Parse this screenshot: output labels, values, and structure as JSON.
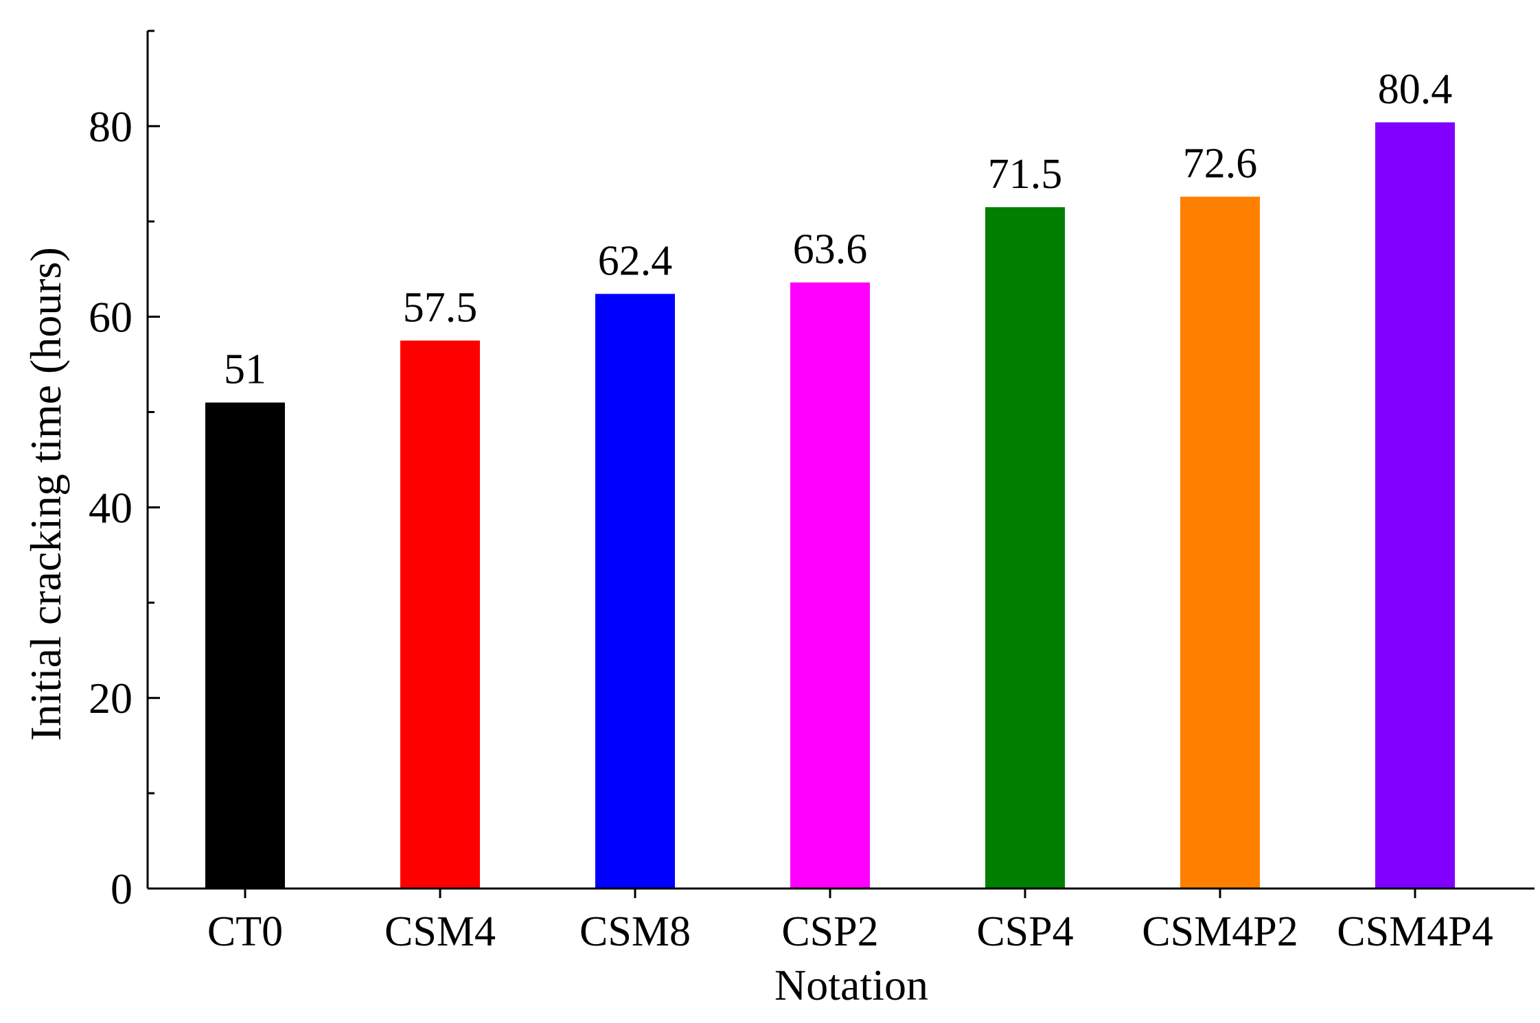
{
  "chart_data": {
    "type": "bar",
    "title": "",
    "xlabel": "Notation",
    "ylabel": "Initial cracking time (hours)",
    "categories": [
      "CT0",
      "CSM4",
      "CSM8",
      "CSP2",
      "CSP4",
      "CSM4P2",
      "CSM4P4"
    ],
    "values": [
      51,
      57.5,
      62.4,
      63.6,
      71.5,
      72.6,
      80.4
    ],
    "value_labels": [
      "51",
      "57.5",
      "62.4",
      "63.6",
      "71.5",
      "72.6",
      "80.4"
    ],
    "colors": [
      "#000000",
      "#ff0000",
      "#0000ff",
      "#ff00ff",
      "#007f00",
      "#ff8000",
      "#8000ff"
    ],
    "ylim": [
      0,
      90
    ],
    "yticks": [
      0,
      20,
      40,
      60,
      80
    ],
    "ytick_labels": [
      "0",
      "20",
      "40",
      "60",
      "80"
    ],
    "grid": false,
    "legend": "none"
  }
}
